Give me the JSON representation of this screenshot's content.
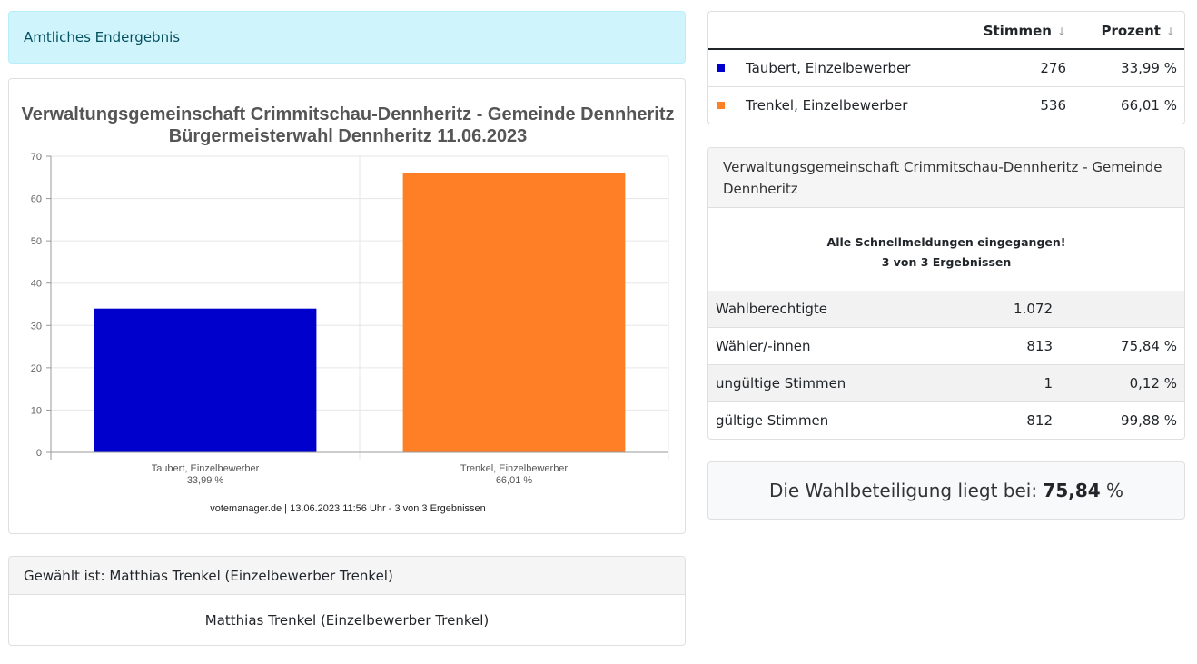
{
  "alert": {
    "text": "Amtliches Endergebnis"
  },
  "chart_data": {
    "type": "bar",
    "title": "Verwaltungsgemeinschaft Crimmitschau-Dennheritz - Gemeinde Dennheritz",
    "subtitle": "Bürgermeisterwahl Dennheritz 11.06.2023",
    "categories": [
      "Taubert, Einzelbewerber",
      "Trenkel, Einzelbewerber"
    ],
    "category_percent_labels": [
      "33,99 %",
      "66,01 %"
    ],
    "values": [
      33.99,
      66.01
    ],
    "colors": [
      "#0000cc",
      "#ff7f27"
    ],
    "ylim": [
      0,
      70
    ],
    "yticks": [
      "0",
      "10",
      "20",
      "30",
      "40",
      "50",
      "60",
      "70"
    ],
    "grid": true,
    "footer": "votemanager.de | 13.06.2023 11:56 Uhr - 3 von 3 Ergebnissen"
  },
  "elected": {
    "header": "Gewählt ist: Matthias Trenkel (Einzelbewerber Trenkel)",
    "body": "Matthias Trenkel (Einzelbewerber Trenkel)"
  },
  "results_table": {
    "headers": {
      "stimmen": "Stimmen",
      "prozent": "Prozent",
      "sort_icon": "↓"
    },
    "rows": [
      {
        "name": "Taubert, Einzelbewerber",
        "votes": "276",
        "percent": "33,99 %",
        "color": "#0000cc"
      },
      {
        "name": "Trenkel, Einzelbewerber",
        "votes": "536",
        "percent": "66,01 %",
        "color": "#ff7f27"
      }
    ]
  },
  "stats": {
    "header": "Verwaltungsgemeinschaft Crimmitschau-Dennheritz - Gemeinde Dennheritz",
    "message_line1": "Alle Schnellmeldungen eingegangen!",
    "message_line2": "3 von 3 Ergebnissen",
    "rows": [
      {
        "label": "Wahlberechtigte",
        "value": "1.072",
        "percent": ""
      },
      {
        "label": "Wähler/-innen",
        "value": "813",
        "percent": "75,84 %"
      },
      {
        "label": "ungültige Stimmen",
        "value": "1",
        "percent": "0,12 %"
      },
      {
        "label": "gültige Stimmen",
        "value": "812",
        "percent": "99,88 %"
      }
    ]
  },
  "turnout": {
    "prefix": "Die Wahlbeteiligung liegt bei: ",
    "value": "75,84",
    "suffix": " %"
  }
}
